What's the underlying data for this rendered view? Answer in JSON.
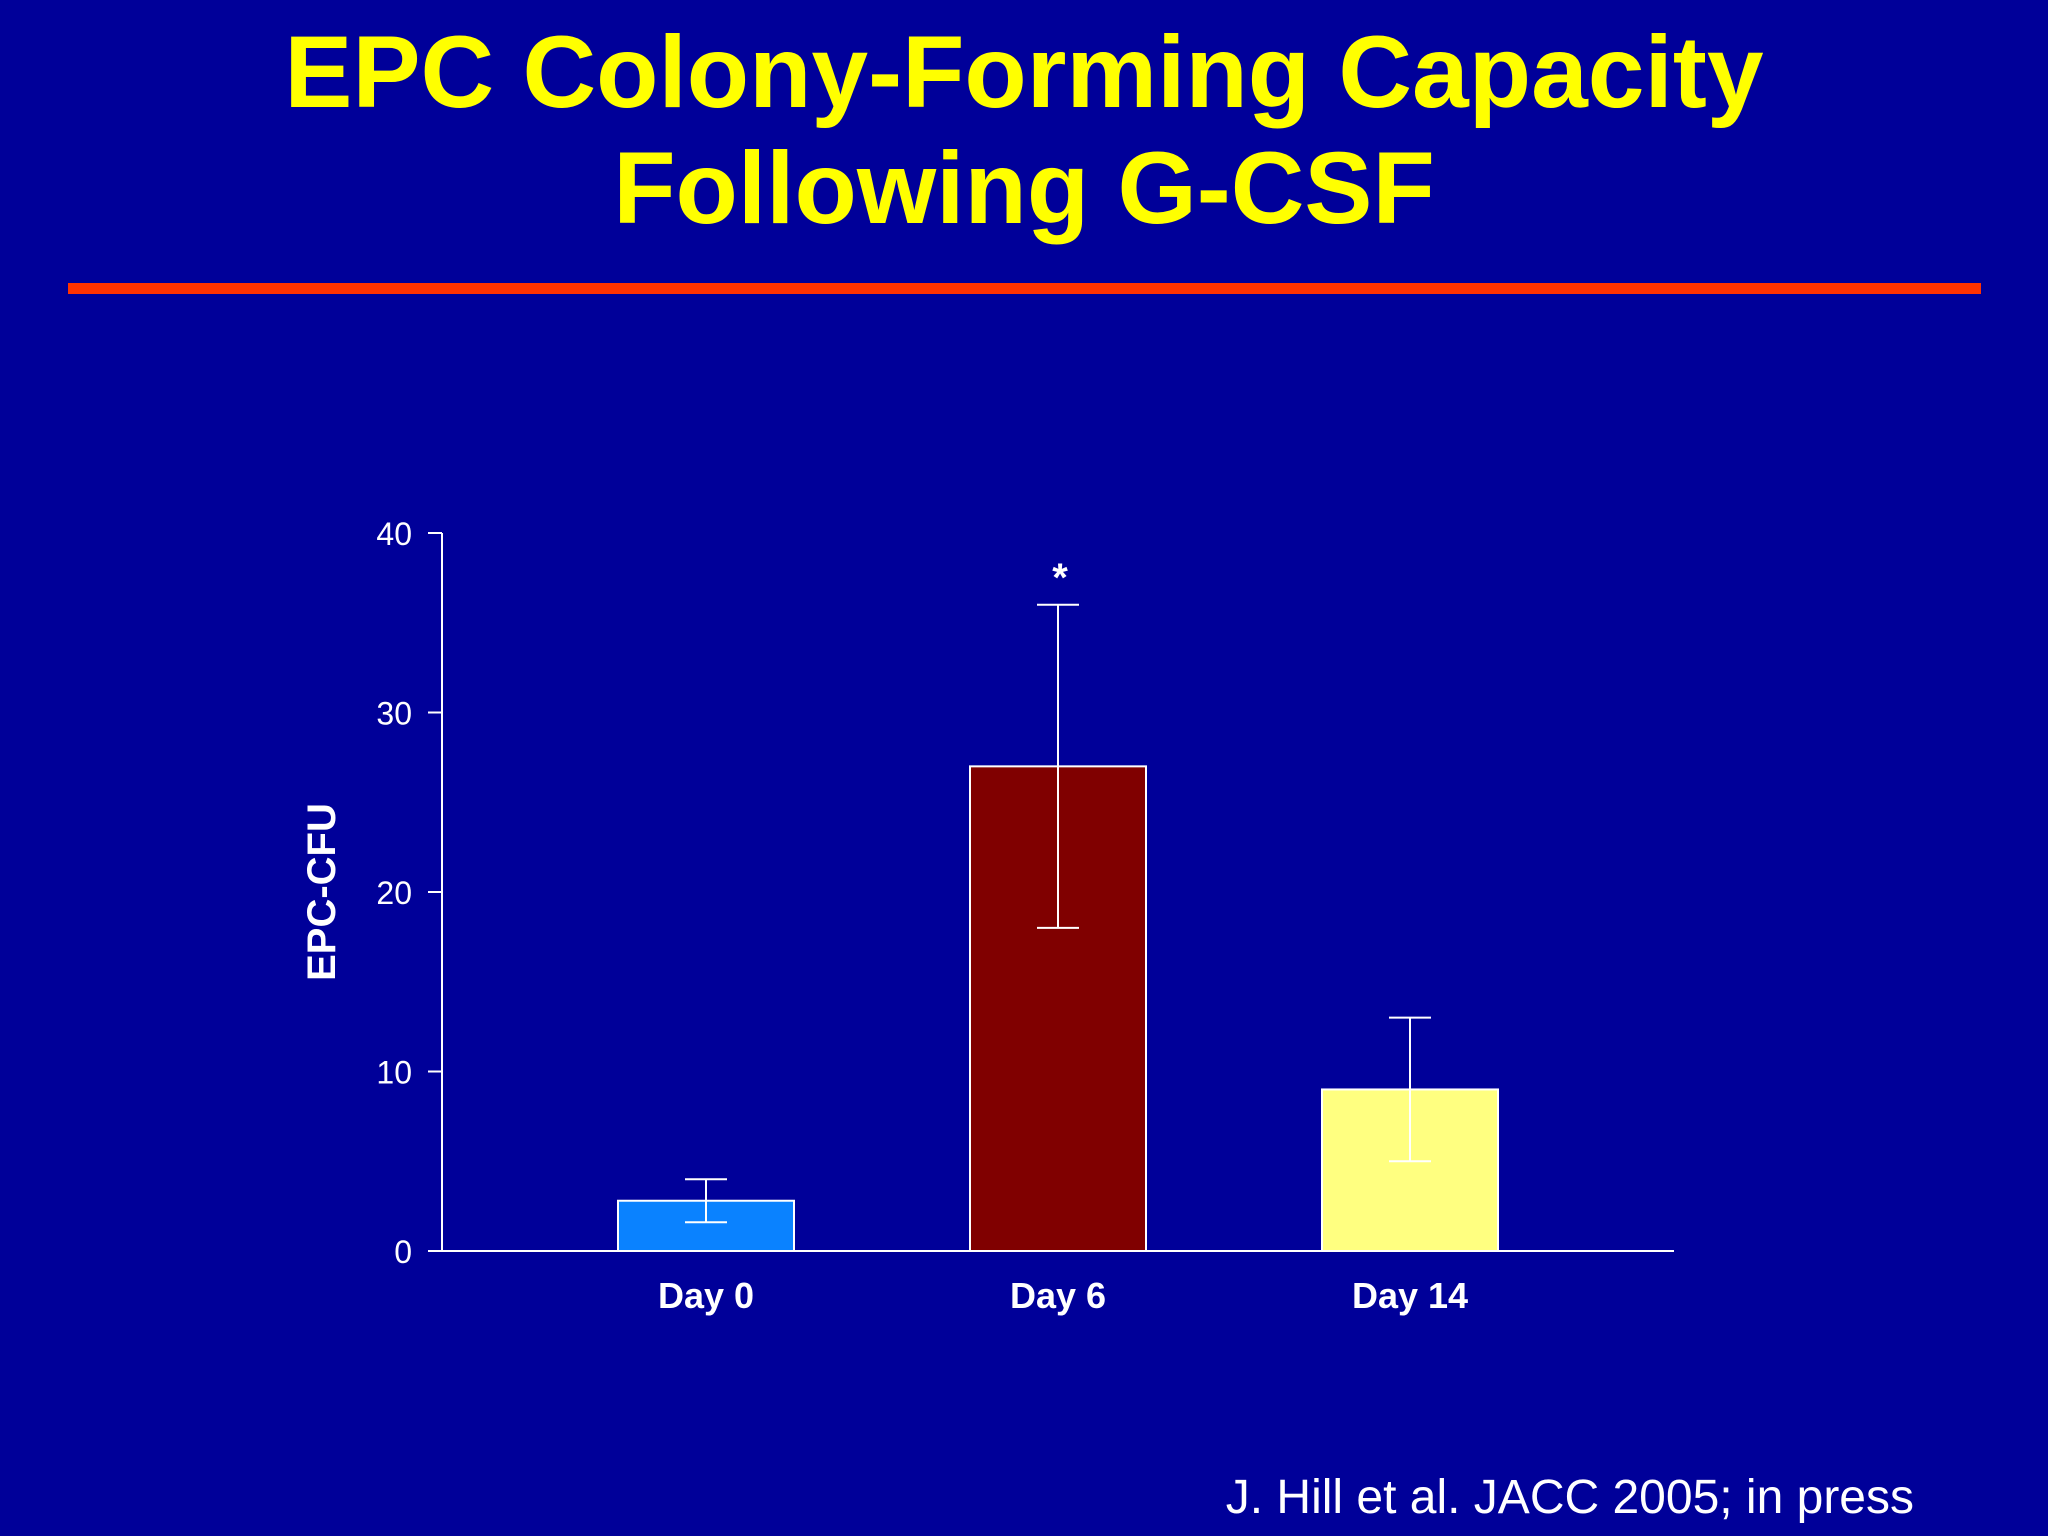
{
  "slide": {
    "title_line1": "EPC Colony-Forming Capacity",
    "title_line2": "Following G-CSF",
    "citation": "J. Hill et al. JACC 2005; in press"
  },
  "colors": {
    "background": "#000099",
    "title": "#ffff00",
    "rule": "#ff3300"
  },
  "chart_data": {
    "type": "bar",
    "categories": [
      "Day 0",
      "Day 6",
      "Day 14"
    ],
    "values": [
      2.8,
      27,
      9
    ],
    "error_plus": [
      1.2,
      9,
      4
    ],
    "error_minus": [
      1.2,
      9,
      4
    ],
    "colors": [
      "#0a82ff",
      "#800000",
      "#ffff80"
    ],
    "annotations": [
      "",
      "*",
      ""
    ],
    "ylabel": "EPC-CFU",
    "xlabel": "",
    "ylim": [
      0,
      40
    ],
    "yticks": [
      0,
      10,
      20,
      30,
      40
    ],
    "grid": false,
    "legend": "none"
  }
}
